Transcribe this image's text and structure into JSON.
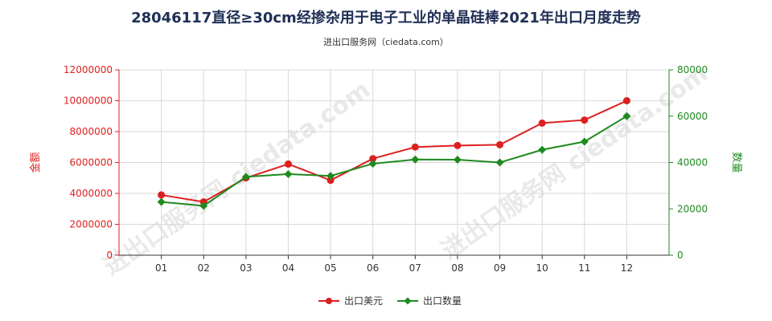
{
  "chart_data": {
    "type": "line",
    "title": "28046117直径≥30cm经掺杂用于电子工业的单晶硅棒2021年出口月度走势",
    "subtitle": "进出口服务网（ciedata.com）",
    "watermark": "进出口服务网 ciedata.com",
    "categories": [
      "01",
      "02",
      "03",
      "04",
      "05",
      "06",
      "07",
      "08",
      "09",
      "10",
      "11",
      "12"
    ],
    "left_axis": {
      "label": "金额",
      "ylim": [
        0,
        12000000
      ],
      "ticks": [
        0,
        2000000,
        4000000,
        6000000,
        8000000,
        10000000,
        12000000
      ],
      "tick_labels": [
        "0",
        "2000000",
        "4000000",
        "6000000",
        "8000000",
        "10000000",
        "12000000"
      ],
      "color": "#dd1f1f"
    },
    "right_axis": {
      "label": "数量",
      "ylim": [
        0,
        80000
      ],
      "ticks": [
        0,
        20000,
        40000,
        60000,
        80000
      ],
      "tick_labels": [
        "0",
        "20000",
        "40000",
        "60000",
        "80000"
      ],
      "color": "#1f8a1f"
    },
    "series": [
      {
        "name": "出口美元",
        "axis": "left",
        "color": "#dd1f1f",
        "marker": "circle",
        "values": [
          3900000,
          3450000,
          5000000,
          5900000,
          4850000,
          6250000,
          7000000,
          7100000,
          7150000,
          8550000,
          8750000,
          10000000
        ]
      },
      {
        "name": "出口数量",
        "axis": "right",
        "color": "#1f8a1f",
        "marker": "diamond",
        "values": [
          23000,
          21300,
          33800,
          35000,
          34200,
          39500,
          41300,
          41200,
          40000,
          45500,
          49000,
          60000
        ]
      }
    ],
    "grid": true,
    "legend": "bottom-center"
  }
}
